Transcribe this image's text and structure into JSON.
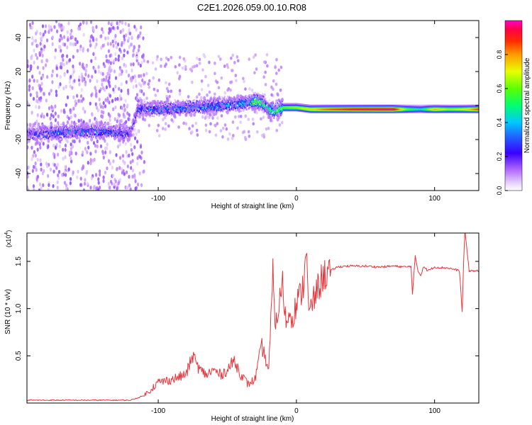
{
  "title": "C2E1.2026.059.00.10.R08",
  "chart_data": [
    {
      "type": "heatmap",
      "xlabel": "Height of straight line (km)",
      "ylabel": "Frequency (Hz)",
      "xlim": [
        -195,
        132
      ],
      "ylim": [
        -50,
        50
      ],
      "x_ticks": [
        -100,
        0,
        100
      ],
      "x_tick_labels": [
        "-100",
        "0",
        "100"
      ],
      "y_ticks": [
        -40,
        -20,
        0,
        20,
        40
      ],
      "y_tick_labels": [
        "-40",
        "-20",
        "0",
        "20",
        "40"
      ],
      "colorbar": {
        "label": "Normalized spectral amplitude",
        "range": [
          0,
          1
        ],
        "ticks": [
          0.0,
          0.2,
          0.4,
          0.6,
          0.8
        ],
        "tick_labels": [
          "0.0",
          "0.2",
          "0.4",
          "0.6",
          "0.8"
        ],
        "colormap": "rainbow (violet-blue-cyan-green-yellow-red-magenta)"
      },
      "ridge": [
        {
          "x": -195,
          "freq": -16,
          "amp": 0.2
        },
        {
          "x": -180,
          "freq": -16,
          "amp": 0.28
        },
        {
          "x": -160,
          "freq": -15,
          "amp": 0.3
        },
        {
          "x": -140,
          "freq": -15,
          "amp": 0.3
        },
        {
          "x": -120,
          "freq": -16,
          "amp": 0.22
        },
        {
          "x": -115,
          "freq": -2,
          "amp": 0.25
        },
        {
          "x": -100,
          "freq": -2,
          "amp": 0.3
        },
        {
          "x": -80,
          "freq": -1,
          "amp": 0.32
        },
        {
          "x": -60,
          "freq": 0,
          "amp": 0.34
        },
        {
          "x": -45,
          "freq": 1,
          "amp": 0.36
        },
        {
          "x": -35,
          "freq": 2,
          "amp": 0.4
        },
        {
          "x": -30,
          "freq": 3,
          "amp": 0.6
        },
        {
          "x": -25,
          "freq": 2,
          "amp": 0.55
        },
        {
          "x": -20,
          "freq": -2,
          "amp": 0.5
        },
        {
          "x": -15,
          "freq": -3,
          "amp": 0.55
        },
        {
          "x": -10,
          "freq": -1,
          "amp": 0.6
        },
        {
          "x": 0,
          "freq": -1,
          "amp": 0.65
        },
        {
          "x": 10,
          "freq": -2,
          "amp": 0.75
        },
        {
          "x": 20,
          "freq": -2,
          "amp": 0.85
        },
        {
          "x": 40,
          "freq": -2,
          "amp": 0.95
        },
        {
          "x": 70,
          "freq": -2,
          "amp": 1.0
        },
        {
          "x": 80,
          "freq": -2,
          "amp": 0.6
        },
        {
          "x": 90,
          "freq": -2,
          "amp": 0.45
        },
        {
          "x": 100,
          "freq": -2,
          "amp": 0.8
        },
        {
          "x": 110,
          "freq": -2,
          "amp": 0.65
        },
        {
          "x": 120,
          "freq": -2,
          "amp": 0.7
        },
        {
          "x": 132,
          "freq": -2,
          "amp": 0.9
        }
      ]
    },
    {
      "type": "line",
      "xlabel": "Height of straight line (km)",
      "ylabel": "SNR (10 * v/v)",
      "y_multiplier_label": "(x10",
      "y_multiplier_exponent": "4",
      "y_multiplier_close": ")",
      "xlim": [
        -195,
        132
      ],
      "ylim": [
        0.0,
        1.8
      ],
      "x_ticks": [
        -100,
        0,
        100
      ],
      "x_tick_labels": [
        "-100",
        "0",
        "100"
      ],
      "y_ticks": [
        0.5,
        1.0,
        1.5
      ],
      "y_tick_labels": [
        "0.5",
        "1.0",
        "1.5"
      ],
      "color": "#e8353a",
      "series": [
        {
          "x": [
            -195,
            -180,
            -160,
            -140,
            -120,
            -110,
            -105,
            -100,
            -90,
            -80,
            -75,
            -70,
            -65,
            -60,
            -55,
            -50,
            -45,
            -40,
            -35,
            -30,
            -25,
            -20,
            -17,
            -15,
            -12,
            -10,
            -7,
            -5,
            -3,
            0,
            3,
            5,
            7,
            9,
            11,
            13,
            15,
            18,
            20,
            22,
            25,
            28,
            30,
            35,
            40,
            50,
            60,
            70,
            80,
            83,
            84,
            86,
            88,
            90,
            92,
            95,
            100,
            110,
            118,
            120,
            121,
            122,
            125,
            132
          ],
          "y": [
            0.03,
            0.03,
            0.03,
            0.03,
            0.03,
            0.08,
            0.15,
            0.22,
            0.25,
            0.3,
            0.5,
            0.35,
            0.3,
            0.35,
            0.3,
            0.35,
            0.45,
            0.3,
            0.2,
            0.25,
            0.6,
            0.35,
            1.35,
            0.8,
            1.1,
            1.25,
            0.8,
            1.0,
            0.9,
            1.05,
            1.15,
            1.25,
            1.7,
            0.9,
            1.05,
            1.1,
            1.2,
            1.3,
            1.35,
            1.38,
            1.4,
            1.43,
            1.44,
            1.45,
            1.45,
            1.45,
            1.44,
            1.45,
            1.44,
            1.45,
            1.15,
            1.55,
            1.4,
            1.35,
            1.45,
            1.4,
            1.44,
            1.43,
            1.4,
            0.97,
            1.5,
            1.82,
            1.4,
            1.4
          ]
        }
      ]
    }
  ]
}
